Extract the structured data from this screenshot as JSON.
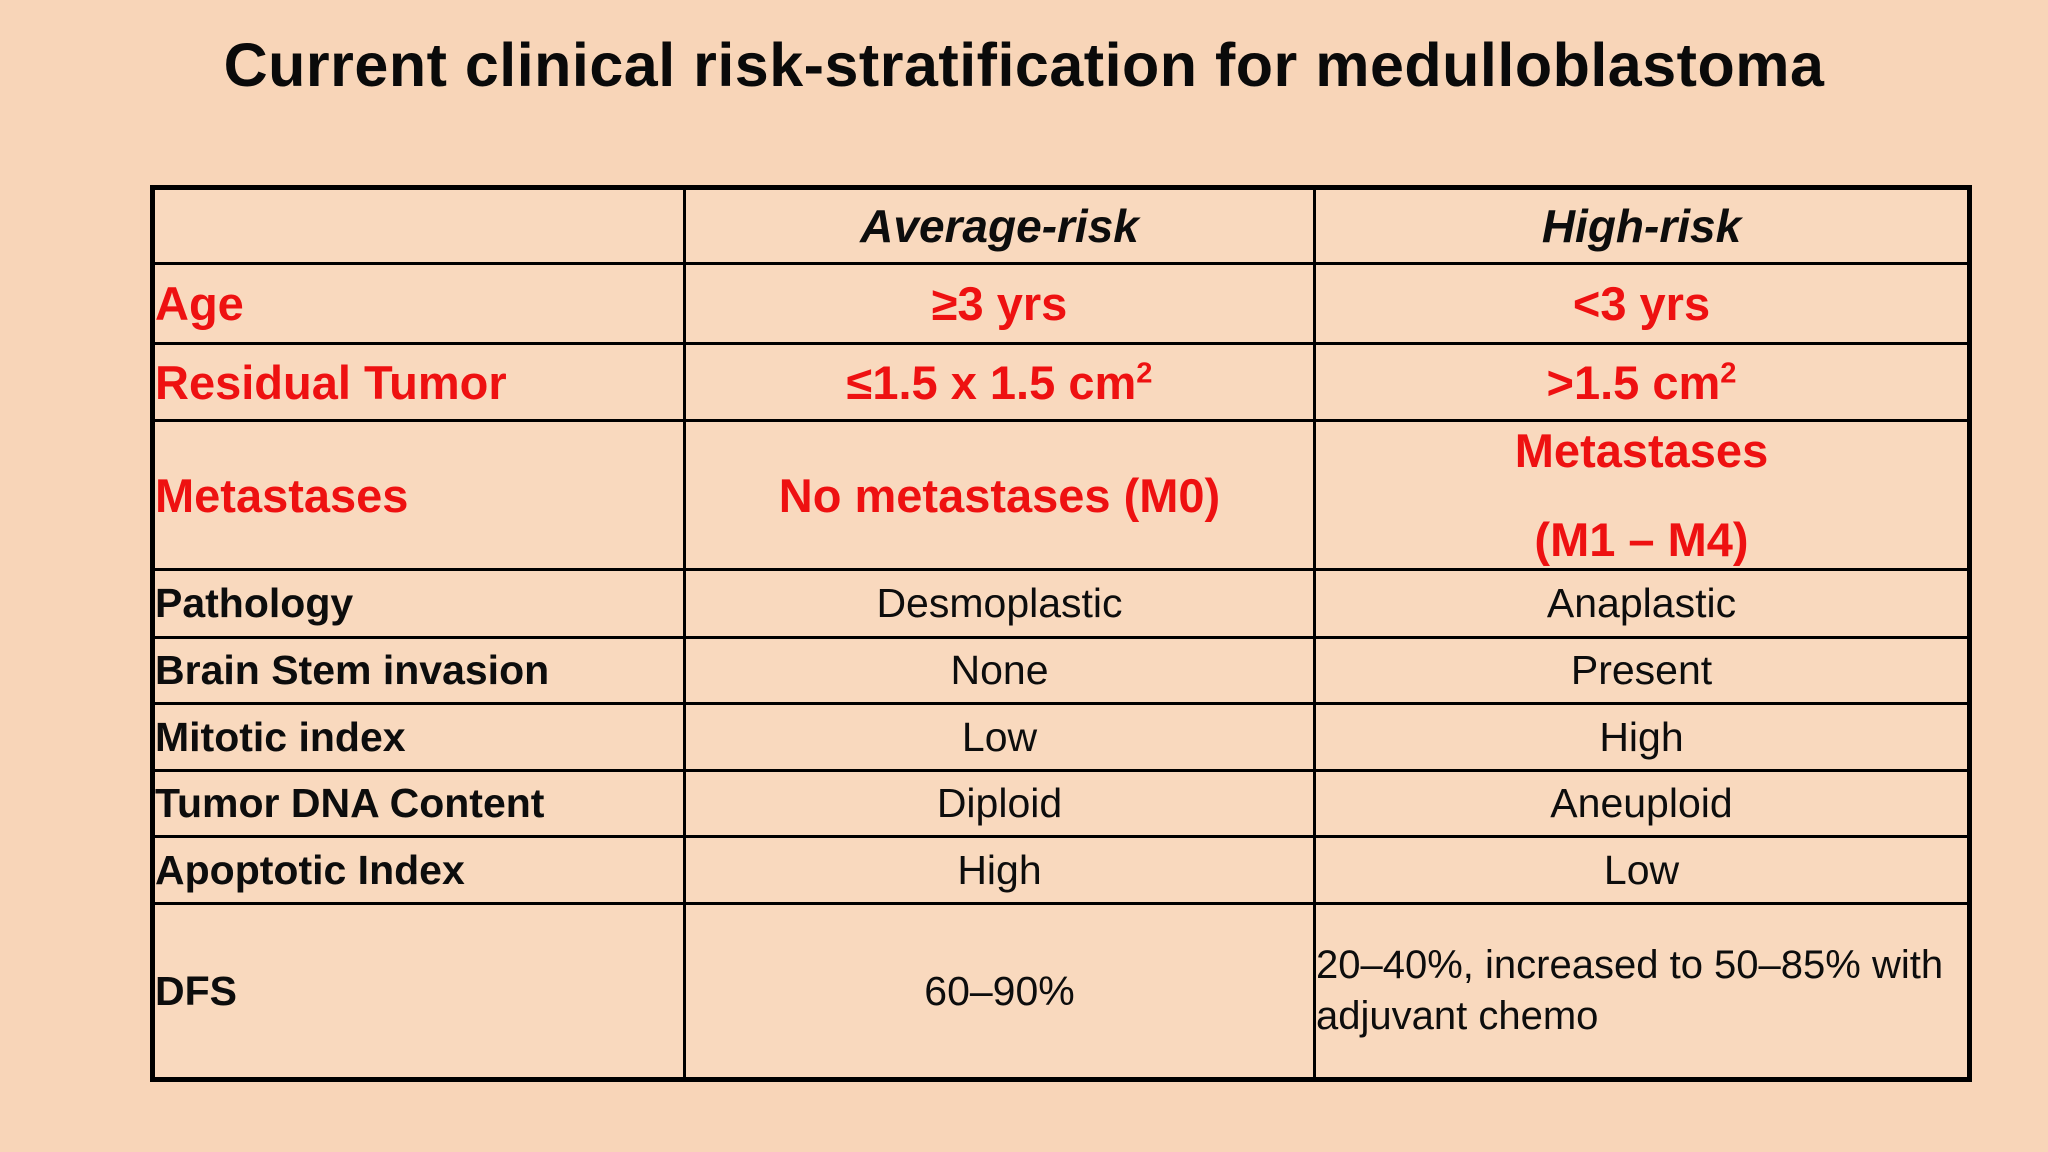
{
  "slide": {
    "title": "Current clinical risk-stratification for medulloblastoma"
  },
  "colors": {
    "page_background": "#f8d5b8",
    "cell_background": "#f9d9be",
    "red_text": "#ee1111",
    "black_text": "#0d0d0d",
    "border": "#000000"
  },
  "table": {
    "header": {
      "row_label": "",
      "average": "Average-risk",
      "high": "High-risk"
    },
    "rows": [
      {
        "label": "Age",
        "avg": "≥3 yrs",
        "high": "<3 yrs"
      },
      {
        "label": "Residual Tumor",
        "avg": "≤1.5 x 1.5 cm",
        "avg_sup": "2",
        "high": ">1.5 cm",
        "high_sup": "2"
      },
      {
        "label": "Metastases",
        "avg": "No metastases (M0)",
        "high_line1": "Metastases",
        "high_line2": "(M1 – M4)"
      },
      {
        "label": "Pathology",
        "avg": "Desmoplastic",
        "high": "Anaplastic"
      },
      {
        "label": "Brain Stem invasion",
        "avg": "None",
        "high": "Present"
      },
      {
        "label": "Mitotic index",
        "avg": "Low",
        "high": "High"
      },
      {
        "label": "Tumor DNA Content",
        "avg": "Diploid",
        "high": "Aneuploid"
      },
      {
        "label": "Apoptotic Index",
        "avg": "High",
        "high": "Low"
      },
      {
        "label": "DFS",
        "avg": "60–90%",
        "high": "20–40%, increased to 50–85% with adjuvant chemo"
      }
    ]
  }
}
